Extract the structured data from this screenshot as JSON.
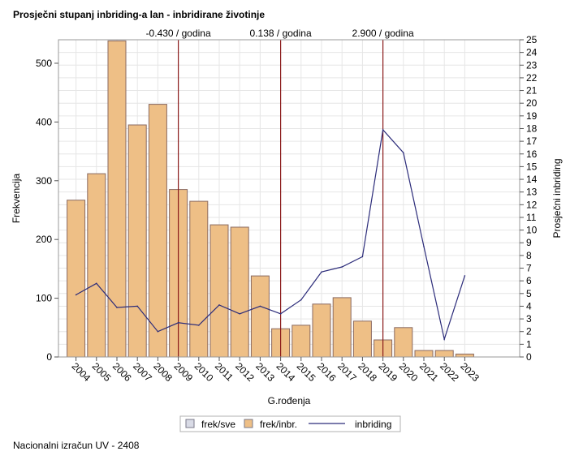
{
  "footer": "Nacionalni izračun UV - 2408",
  "chart_data": {
    "type": "bar",
    "title": "Prosječni stupanj inbriding-a lan - inbridirane životinje",
    "xlabel": "G.rođenja",
    "ylabel": "Frekvencija",
    "y2label": "Prosječni inbriding",
    "categories": [
      "2004",
      "2005",
      "2006",
      "2007",
      "2008",
      "2009",
      "2010",
      "2011",
      "2012",
      "2013",
      "2014",
      "2015",
      "2016",
      "2017",
      "2018",
      "2019",
      "2020",
      "2021",
      "2022",
      "2023"
    ],
    "ylim": [
      0,
      540
    ],
    "y2lim": [
      0,
      25
    ],
    "yticks": [
      0,
      100,
      200,
      300,
      400,
      500
    ],
    "y2ticks": [
      0,
      1,
      2,
      3,
      4,
      5,
      6,
      7,
      8,
      9,
      10,
      11,
      12,
      13,
      14,
      15,
      16,
      17,
      18,
      19,
      20,
      21,
      22,
      23,
      24,
      25
    ],
    "grid": true,
    "legend_position": "bottom",
    "legend": [
      {
        "label": "frek/sve",
        "kind": "box",
        "color": "#d9dbe6"
      },
      {
        "label": "frek/inbr.",
        "kind": "box",
        "color": "#eebf86"
      },
      {
        "label": "inbriding",
        "kind": "line",
        "color": "#2c2c7a"
      }
    ],
    "series": [
      {
        "name": "frek/inbr.",
        "type": "bar",
        "axis": "left",
        "color": "#eebf86",
        "values": [
          267,
          312,
          538,
          395,
          430,
          285,
          265,
          225,
          221,
          138,
          48,
          54,
          90,
          101,
          61,
          29,
          50,
          11,
          11,
          5
        ]
      },
      {
        "name": "inbriding",
        "type": "line",
        "axis": "right",
        "color": "#2c2c7a",
        "values": [
          4.9,
          5.8,
          3.9,
          4.0,
          2.0,
          2.7,
          2.5,
          4.1,
          3.4,
          4.0,
          3.4,
          4.5,
          6.7,
          7.1,
          7.9,
          17.9,
          16.1,
          8.7,
          1.4,
          6.4
        ]
      }
    ],
    "reference_lines": [
      {
        "at": "2009",
        "label": "-0.430 / godina"
      },
      {
        "at": "2014",
        "label": "0.138 / godina"
      },
      {
        "at": "2019",
        "label": "2.900 / godina"
      }
    ]
  }
}
